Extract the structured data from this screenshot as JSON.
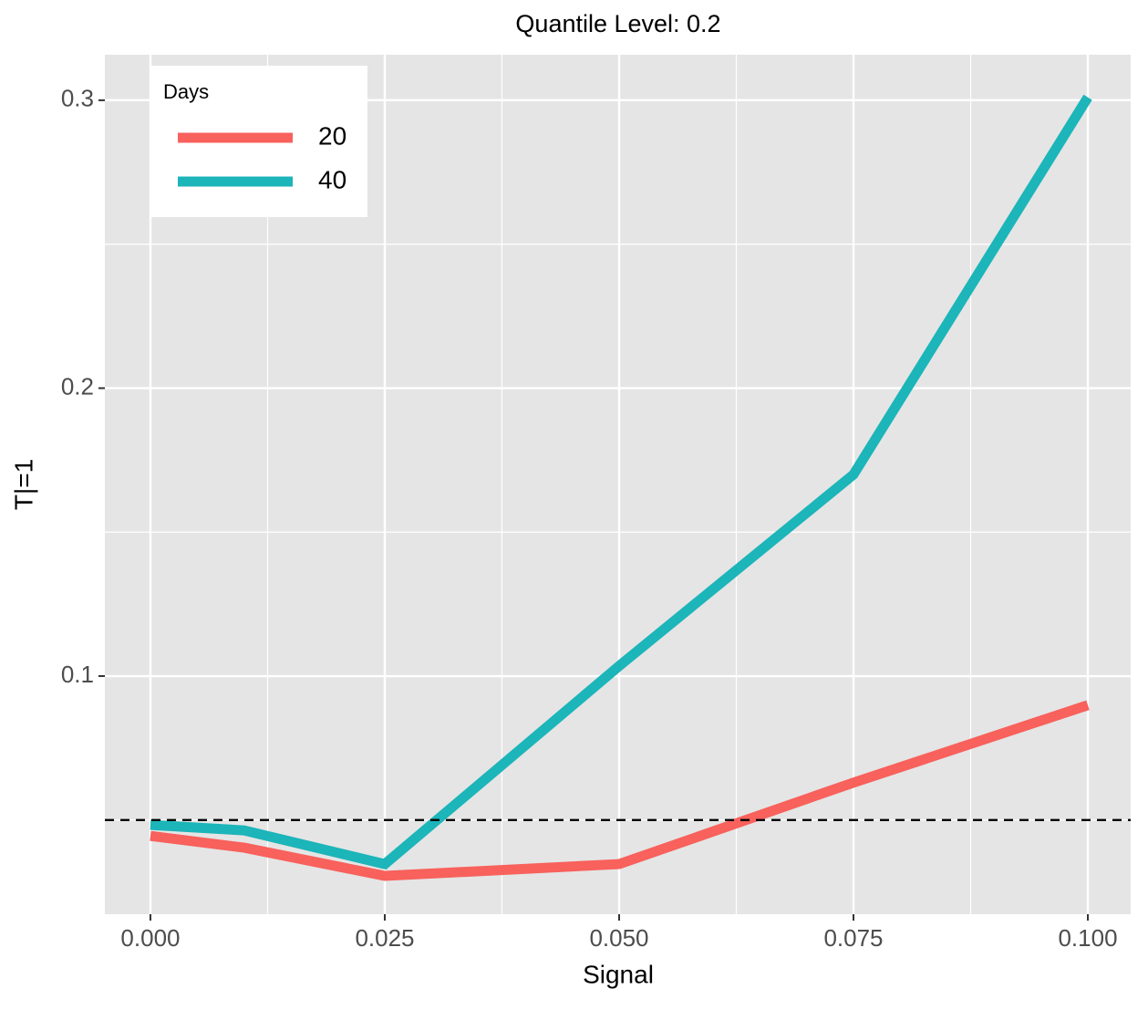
{
  "chart_data": {
    "type": "line",
    "title": "Quantile Level: 0.2",
    "x_label": "Signal",
    "y_label": "T|=1",
    "x": [
      0,
      0.01,
      0.025,
      0.05,
      0.075,
      0.1
    ],
    "series": [
      {
        "name": "20",
        "color": "#f8615c",
        "values": [
          0.0445,
          0.0404,
          0.0306,
          0.0347,
          0.063,
          0.0899
        ]
      },
      {
        "name": "40",
        "color": "#1cb5b9",
        "values": [
          0.0483,
          0.0464,
          0.0347,
          0.1035,
          0.17,
          0.301
        ]
      }
    ],
    "legend_title": "Days",
    "legend_position": "top-left",
    "hline": 0.05,
    "xlim": [
      -0.00486,
      0.10457
    ],
    "xticks": [
      {
        "value": 0,
        "label": "0.000"
      },
      {
        "value": 0.025,
        "label": "0.025"
      },
      {
        "value": 0.05,
        "label": "0.050"
      },
      {
        "value": 0.075,
        "label": "0.075"
      },
      {
        "value": 0.1,
        "label": "0.100"
      }
    ],
    "ylim": [
      0.0173,
      0.3158
    ],
    "yticks": [
      0.1,
      0.2,
      0.3
    ],
    "grid": true
  }
}
